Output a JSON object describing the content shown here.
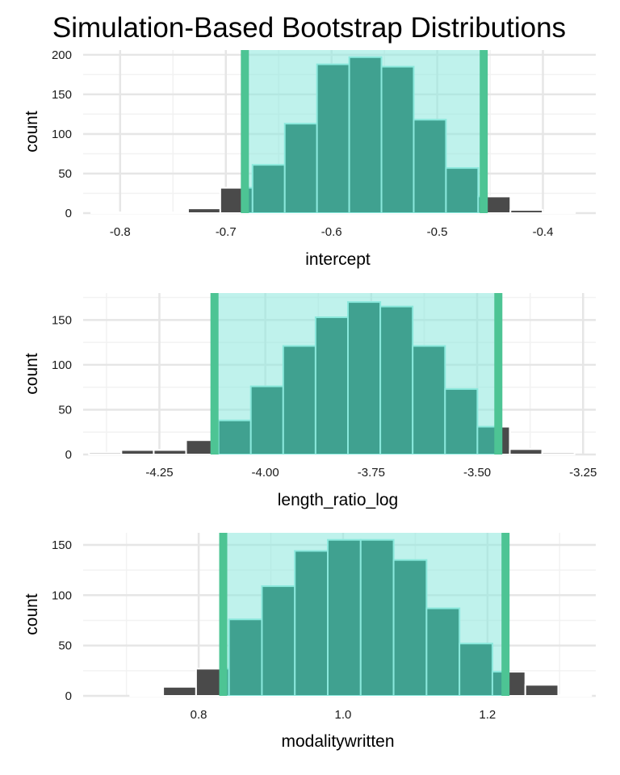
{
  "title": "Simulation-Based Bootstrap Distributions",
  "colors": {
    "bar": "#4a4a4a",
    "ci_shade": "#8ae8dc",
    "ci_bar": "#40a190",
    "ci_edge": "#4dc494",
    "bar_outline": "#ffffff",
    "grid_major": "#e6e6e6",
    "grid_minor": "#f2f2f2"
  },
  "chart_data": [
    {
      "type": "bar",
      "name": "intercept",
      "xlabel": "intercept",
      "ylabel": "count",
      "xlim": [
        -0.835,
        -0.35
      ],
      "ylim": [
        0,
        206
      ],
      "xticks": [
        -0.8,
        -0.7,
        -0.6,
        -0.5,
        -0.4
      ],
      "xtick_labels": [
        "-0.8",
        "-0.7",
        "-0.6",
        "-0.5",
        "-0.4"
      ],
      "yticks": [
        0,
        50,
        100,
        150,
        200
      ],
      "ytick_labels": [
        "0",
        "50",
        "100",
        "150",
        "200"
      ],
      "bin_width": 0.0305,
      "bin_centers": [
        -0.812,
        -0.7815,
        -0.751,
        -0.7205,
        -0.69,
        -0.6595,
        -0.629,
        -0.5985,
        -0.568,
        -0.5375,
        -0.507,
        -0.4765,
        -0.446,
        -0.4155,
        -0.385
      ],
      "counts": [
        1,
        1,
        1,
        6,
        32,
        61,
        113,
        188,
        197,
        185,
        118,
        57,
        21,
        4,
        1
      ],
      "ci": [
        -0.682,
        -0.456
      ]
    },
    {
      "type": "bar",
      "name": "length_ratio_log",
      "xlabel": "length_ratio_log",
      "ylabel": "count",
      "xlim": [
        -4.43,
        -3.22
      ],
      "ylim": [
        0,
        180
      ],
      "xticks": [
        -4.25,
        -4.0,
        -3.75,
        -3.5,
        -3.25
      ],
      "xtick_labels": [
        "-4.25",
        "-4.00",
        "-3.75",
        "-3.50",
        "-3.25"
      ],
      "yticks": [
        0,
        50,
        100,
        150
      ],
      "ytick_labels": [
        "0",
        "50",
        "100",
        "150"
      ],
      "bin_width": 0.0764,
      "bin_centers": [
        -4.378,
        -4.3016,
        -4.2252,
        -4.1488,
        -4.0724,
        -3.996,
        -3.9196,
        -3.8432,
        -3.7668,
        -3.6904,
        -3.614,
        -3.5376,
        -3.4612,
        -3.3848,
        -3.3084
      ],
      "counts": [
        2,
        5,
        5,
        16,
        38,
        76,
        121,
        153,
        170,
        165,
        121,
        73,
        31,
        6,
        2
      ],
      "ci": [
        -4.12,
        -3.45
      ]
    },
    {
      "type": "bar",
      "name": "modalitywritten",
      "xlabel": "modalitywritten",
      "ylabel": "count",
      "xlim": [
        0.64,
        1.35
      ],
      "ylim": [
        0,
        162
      ],
      "xticks": [
        0.8,
        1.0,
        1.2
      ],
      "xtick_labels": [
        "0.8",
        "1.0",
        "1.2"
      ],
      "yticks": [
        0,
        50,
        100,
        150
      ],
      "ytick_labels": [
        "0",
        "50",
        "100",
        "150"
      ],
      "bin_width": 0.0456,
      "bin_centers": [
        0.6824,
        0.728,
        0.7736,
        0.8192,
        0.8648,
        0.9104,
        0.956,
        1.0016,
        1.0472,
        1.0928,
        1.1384,
        1.184,
        1.2296,
        1.2752,
        1.3208
      ],
      "counts": [
        0,
        1,
        9,
        27,
        76,
        109,
        144,
        155,
        155,
        135,
        87,
        52,
        24,
        11,
        1
      ],
      "ci": [
        0.834,
        1.225
      ]
    }
  ]
}
